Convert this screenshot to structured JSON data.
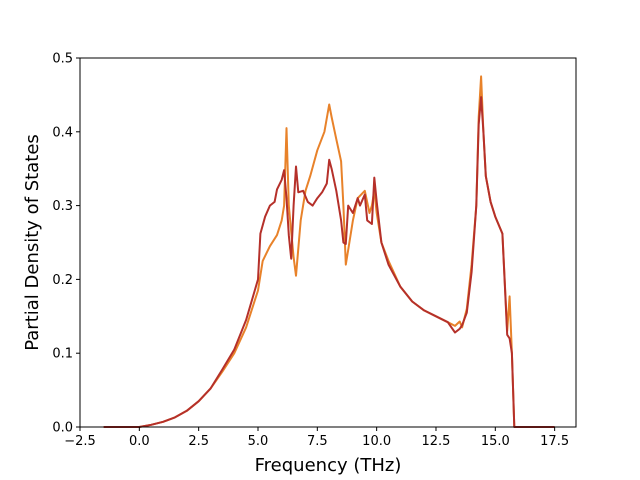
{
  "chart_data": {
    "type": "line",
    "title": "",
    "xlabel": "Frequency (THz)",
    "ylabel": "Partial Density of States",
    "xlim": [
      -2.5,
      18.4
    ],
    "ylim": [
      0,
      0.5
    ],
    "xticks": [
      -2.5,
      0.0,
      2.5,
      5.0,
      7.5,
      10.0,
      12.5,
      15.0,
      17.5
    ],
    "xtick_labels": [
      "−2.5",
      "0.0",
      "2.5",
      "5.0",
      "7.5",
      "10.0",
      "12.5",
      "15.0",
      "17.5"
    ],
    "yticks": [
      0.0,
      0.1,
      0.2,
      0.3,
      0.4,
      0.5
    ],
    "ytick_labels": [
      "0.0",
      "0.1",
      "0.2",
      "0.3",
      "0.4",
      "0.5"
    ],
    "grid": false,
    "legend": "none",
    "series": [
      {
        "color": "#e8822a",
        "x": [
          -1.5,
          0.0,
          0.5,
          1.0,
          1.5,
          2.0,
          2.5,
          3.0,
          3.5,
          4.0,
          4.5,
          5.0,
          5.2,
          5.5,
          5.8,
          6.0,
          6.1,
          6.2,
          6.3,
          6.5,
          6.6,
          6.8,
          7.0,
          7.2,
          7.5,
          7.8,
          8.0,
          8.1,
          8.3,
          8.5,
          8.6,
          8.7,
          8.8,
          9.0,
          9.2,
          9.5,
          9.7,
          9.8,
          9.9,
          10.0,
          10.2,
          10.5,
          11.0,
          11.5,
          12.0,
          12.5,
          13.0,
          13.3,
          13.5,
          13.6,
          13.8,
          14.0,
          14.2,
          14.3,
          14.4,
          14.5,
          14.6,
          14.8,
          15.0,
          15.3,
          15.5,
          15.6,
          15.7,
          15.8,
          15.9,
          16.0,
          17.5
        ],
        "y": [
          0.0,
          0.0,
          0.003,
          0.007,
          0.013,
          0.022,
          0.035,
          0.052,
          0.075,
          0.1,
          0.135,
          0.185,
          0.225,
          0.245,
          0.26,
          0.28,
          0.3,
          0.405,
          0.3,
          0.23,
          0.205,
          0.28,
          0.32,
          0.34,
          0.375,
          0.4,
          0.437,
          0.42,
          0.39,
          0.36,
          0.3,
          0.22,
          0.24,
          0.28,
          0.31,
          0.32,
          0.29,
          0.3,
          0.32,
          0.29,
          0.25,
          0.225,
          0.19,
          0.17,
          0.158,
          0.15,
          0.142,
          0.137,
          0.143,
          0.135,
          0.16,
          0.22,
          0.3,
          0.42,
          0.475,
          0.4,
          0.34,
          0.305,
          0.285,
          0.262,
          0.13,
          0.177,
          0.1,
          0.0,
          0.0,
          0.0,
          0.0
        ]
      },
      {
        "color": "#b5302a",
        "x": [
          -1.5,
          0.0,
          0.5,
          1.0,
          1.5,
          2.0,
          2.5,
          3.0,
          3.5,
          4.0,
          4.5,
          5.0,
          5.1,
          5.3,
          5.5,
          5.7,
          5.8,
          6.0,
          6.1,
          6.2,
          6.3,
          6.4,
          6.5,
          6.6,
          6.7,
          6.9,
          7.1,
          7.3,
          7.5,
          7.7,
          7.9,
          8.0,
          8.1,
          8.3,
          8.5,
          8.6,
          8.7,
          8.8,
          9.0,
          9.2,
          9.3,
          9.5,
          9.6,
          9.8,
          9.9,
          10.0,
          10.2,
          10.5,
          11.0,
          11.5,
          12.0,
          12.5,
          13.0,
          13.3,
          13.5,
          13.6,
          13.8,
          14.0,
          14.2,
          14.3,
          14.4,
          14.5,
          14.6,
          14.8,
          15.0,
          15.3,
          15.5,
          15.6,
          15.7,
          15.8,
          15.9,
          16.0,
          17.5
        ],
        "y": [
          0.0,
          0.0,
          0.003,
          0.007,
          0.013,
          0.022,
          0.035,
          0.052,
          0.078,
          0.105,
          0.145,
          0.2,
          0.262,
          0.285,
          0.3,
          0.305,
          0.322,
          0.335,
          0.348,
          0.31,
          0.26,
          0.228,
          0.3,
          0.353,
          0.318,
          0.32,
          0.305,
          0.3,
          0.31,
          0.318,
          0.33,
          0.362,
          0.35,
          0.32,
          0.28,
          0.25,
          0.248,
          0.3,
          0.29,
          0.31,
          0.3,
          0.315,
          0.28,
          0.275,
          0.338,
          0.305,
          0.25,
          0.22,
          0.19,
          0.17,
          0.158,
          0.15,
          0.142,
          0.128,
          0.133,
          0.138,
          0.155,
          0.21,
          0.3,
          0.41,
          0.447,
          0.4,
          0.34,
          0.305,
          0.285,
          0.262,
          0.125,
          0.12,
          0.1,
          0.0,
          0.0,
          0.0,
          0.0
        ]
      }
    ]
  }
}
